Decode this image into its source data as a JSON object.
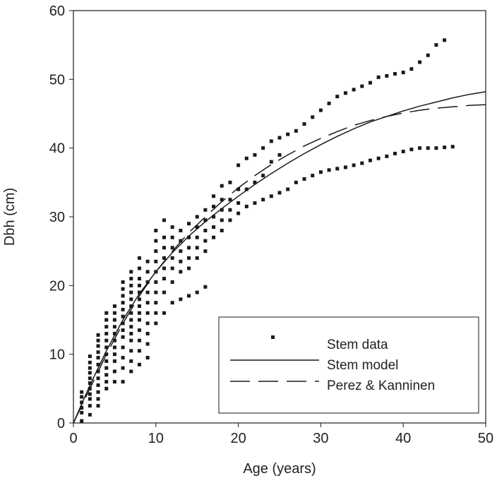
{
  "chart_data": {
    "type": "scatter",
    "xlabel": "Age (years)",
    "ylabel": "Dbh (cm)",
    "xlim": [
      0,
      50
    ],
    "ylim": [
      0,
      60
    ],
    "xticks": [
      0,
      10,
      20,
      30,
      40,
      50
    ],
    "yticks": [
      0,
      10,
      20,
      30,
      40,
      50,
      60
    ],
    "grid": false,
    "legend_position": "bottom-right",
    "series": [
      {
        "name": "Stem data",
        "kind": "points",
        "color": "#1a1a1a",
        "points": [
          [
            1,
            0.3
          ],
          [
            1,
            1.5
          ],
          [
            1,
            2.2
          ],
          [
            1,
            3.0
          ],
          [
            1,
            3.8
          ],
          [
            1,
            4.5
          ],
          [
            2,
            1.2
          ],
          [
            2,
            2.5
          ],
          [
            2,
            3.5
          ],
          [
            2,
            4.2
          ],
          [
            2,
            5.0
          ],
          [
            2,
            5.8
          ],
          [
            2,
            6.5
          ],
          [
            2,
            7.3
          ],
          [
            2,
            8.0
          ],
          [
            2,
            8.8
          ],
          [
            2,
            9.7
          ],
          [
            3,
            2.5
          ],
          [
            3,
            3.5
          ],
          [
            3,
            4.5
          ],
          [
            3,
            5.5
          ],
          [
            3,
            6.5
          ],
          [
            3,
            7.5
          ],
          [
            3,
            8.5
          ],
          [
            3,
            9.5
          ],
          [
            3,
            10.3
          ],
          [
            3,
            11.2
          ],
          [
            3,
            12.0
          ],
          [
            3,
            12.8
          ],
          [
            4,
            5.0
          ],
          [
            4,
            6.0
          ],
          [
            4,
            7.0
          ],
          [
            4,
            8.0
          ],
          [
            4,
            9.0
          ],
          [
            4,
            10.0
          ],
          [
            4,
            11.0
          ],
          [
            4,
            12.0
          ],
          [
            4,
            13.0
          ],
          [
            4,
            14.0
          ],
          [
            4,
            15.0
          ],
          [
            4,
            16.0
          ],
          [
            5,
            6.0
          ],
          [
            5,
            7.5
          ],
          [
            5,
            9.0
          ],
          [
            5,
            10.0
          ],
          [
            5,
            11.0
          ],
          [
            5,
            12.0
          ],
          [
            5,
            13.0
          ],
          [
            5,
            14.0
          ],
          [
            5,
            15.0
          ],
          [
            5,
            16.0
          ],
          [
            5,
            17.0
          ],
          [
            6,
            6.0
          ],
          [
            6,
            8.0
          ],
          [
            6,
            9.5
          ],
          [
            6,
            11.0
          ],
          [
            6,
            12.5
          ],
          [
            6,
            13.5
          ],
          [
            6,
            14.5
          ],
          [
            6,
            15.5
          ],
          [
            6,
            16.5
          ],
          [
            6,
            17.5
          ],
          [
            6,
            18.5
          ],
          [
            6,
            19.5
          ],
          [
            6,
            20.5
          ],
          [
            7,
            7.5
          ],
          [
            7,
            9.0
          ],
          [
            7,
            10.5
          ],
          [
            7,
            12.0
          ],
          [
            7,
            13.0
          ],
          [
            7,
            14.0
          ],
          [
            7,
            15.0
          ],
          [
            7,
            16.0
          ],
          [
            7,
            17.0
          ],
          [
            7,
            18.0
          ],
          [
            7,
            19.0
          ],
          [
            7,
            20.0
          ],
          [
            7,
            21.0
          ],
          [
            7,
            22.0
          ],
          [
            8,
            8.5
          ],
          [
            8,
            10.5
          ],
          [
            8,
            12.0
          ],
          [
            8,
            13.5
          ],
          [
            8,
            15.0
          ],
          [
            8,
            16.0
          ],
          [
            8,
            17.0
          ],
          [
            8,
            18.0
          ],
          [
            8,
            19.0
          ],
          [
            8,
            20.0
          ],
          [
            8,
            21.0
          ],
          [
            8,
            22.5
          ],
          [
            8,
            24.0
          ],
          [
            9,
            9.5
          ],
          [
            9,
            11.5
          ],
          [
            9,
            13.0
          ],
          [
            9,
            14.5
          ],
          [
            9,
            16.0
          ],
          [
            9,
            17.5
          ],
          [
            9,
            19.0
          ],
          [
            9,
            20.5
          ],
          [
            9,
            22.0
          ],
          [
            9,
            23.5
          ],
          [
            10,
            14.5
          ],
          [
            10,
            16.0
          ],
          [
            10,
            17.5
          ],
          [
            10,
            19.0
          ],
          [
            10,
            20.5
          ],
          [
            10,
            22.0
          ],
          [
            10,
            23.5
          ],
          [
            10,
            25.0
          ],
          [
            10,
            26.5
          ],
          [
            10,
            28.0
          ],
          [
            11,
            16.0
          ],
          [
            11,
            19.0
          ],
          [
            11,
            21.0
          ],
          [
            11,
            22.5
          ],
          [
            11,
            24.0
          ],
          [
            11,
            25.5
          ],
          [
            11,
            27.0
          ],
          [
            11,
            29.5
          ],
          [
            12,
            17.5
          ],
          [
            12,
            20.5
          ],
          [
            12,
            22.5
          ],
          [
            12,
            24.0
          ],
          [
            12,
            25.5
          ],
          [
            12,
            27.0
          ],
          [
            12,
            28.5
          ],
          [
            13,
            18.0
          ],
          [
            13,
            22.0
          ],
          [
            13,
            23.5
          ],
          [
            13,
            25.0
          ],
          [
            13,
            26.5
          ],
          [
            13,
            28.0
          ],
          [
            14,
            18.5
          ],
          [
            14,
            22.5
          ],
          [
            14,
            24.0
          ],
          [
            14,
            25.5
          ],
          [
            14,
            27.0
          ],
          [
            14,
            29.0
          ],
          [
            15,
            19.0
          ],
          [
            15,
            24.0
          ],
          [
            15,
            25.5
          ],
          [
            15,
            27.0
          ],
          [
            15,
            28.5
          ],
          [
            15,
            30.0
          ],
          [
            16,
            19.8
          ],
          [
            16,
            25.0
          ],
          [
            16,
            26.5
          ],
          [
            16,
            28.0
          ],
          [
            16,
            29.5
          ],
          [
            16,
            31.0
          ],
          [
            17,
            27.0
          ],
          [
            17,
            28.5
          ],
          [
            17,
            30.0
          ],
          [
            17,
            31.5
          ],
          [
            17,
            33.0
          ],
          [
            18,
            28.0
          ],
          [
            18,
            29.5
          ],
          [
            18,
            31.0
          ],
          [
            18,
            32.5
          ],
          [
            18,
            34.5
          ],
          [
            19,
            29.5
          ],
          [
            19,
            31.0
          ],
          [
            19,
            32.5
          ],
          [
            19,
            35.0
          ],
          [
            20,
            30.5
          ],
          [
            20,
            32.0
          ],
          [
            20,
            34.0
          ],
          [
            20,
            37.5
          ],
          [
            21,
            31.5
          ],
          [
            21,
            34.0
          ],
          [
            21,
            38.5
          ],
          [
            22,
            32.0
          ],
          [
            22,
            35.0
          ],
          [
            22,
            39.0
          ],
          [
            23,
            32.5
          ],
          [
            23,
            36.0
          ],
          [
            23,
            40.0
          ],
          [
            24,
            33.0
          ],
          [
            24,
            38.0
          ],
          [
            24,
            41.0
          ],
          [
            25,
            33.5
          ],
          [
            25,
            39.0
          ],
          [
            25,
            41.5
          ],
          [
            26,
            34.0
          ],
          [
            26,
            42.0
          ],
          [
            27,
            35.0
          ],
          [
            27,
            42.5
          ],
          [
            28,
            35.5
          ],
          [
            28,
            43.5
          ],
          [
            29,
            36.0
          ],
          [
            29,
            44.5
          ],
          [
            30,
            36.5
          ],
          [
            30,
            45.5
          ],
          [
            31,
            36.8
          ],
          [
            31,
            46.5
          ],
          [
            32,
            37.0
          ],
          [
            32,
            47.5
          ],
          [
            33,
            37.2
          ],
          [
            33,
            48.0
          ],
          [
            34,
            37.5
          ],
          [
            34,
            48.5
          ],
          [
            35,
            37.8
          ],
          [
            35,
            49.0
          ],
          [
            36,
            38.2
          ],
          [
            36,
            49.5
          ],
          [
            37,
            38.5
          ],
          [
            37,
            50.3
          ],
          [
            38,
            38.8
          ],
          [
            38,
            50.5
          ],
          [
            39,
            39.2
          ],
          [
            39,
            50.8
          ],
          [
            40,
            39.5
          ],
          [
            40,
            51.0
          ],
          [
            41,
            39.8
          ],
          [
            41,
            51.5
          ],
          [
            42,
            40.0
          ],
          [
            42,
            52.5
          ],
          [
            43,
            40.0
          ],
          [
            43,
            53.5
          ],
          [
            44,
            40.0
          ],
          [
            44,
            55.0
          ],
          [
            45,
            40.1
          ],
          [
            45,
            55.7
          ],
          [
            46,
            40.2
          ]
        ]
      },
      {
        "name": "Stem model",
        "kind": "solid-line",
        "color": "#1a1a1a",
        "x": [
          0,
          2,
          4,
          6,
          8,
          10,
          12,
          14,
          16,
          18,
          20,
          22,
          24,
          26,
          28,
          30,
          32,
          34,
          36,
          38,
          40,
          42,
          44,
          46,
          48,
          50
        ],
        "y": [
          0,
          5.5,
          10.5,
          15.0,
          18.8,
          22.0,
          24.8,
          27.2,
          29.3,
          31.2,
          33.0,
          34.7,
          36.3,
          37.8,
          39.2,
          40.5,
          41.7,
          42.8,
          43.8,
          44.6,
          45.4,
          46.1,
          46.7,
          47.3,
          47.8,
          48.2
        ]
      },
      {
        "name": "Perez & Kanninen",
        "kind": "dashed-line",
        "color": "#1a1a1a",
        "x": [
          0,
          2,
          4,
          6,
          8,
          10,
          12,
          14,
          16,
          18,
          20,
          22,
          24,
          26,
          28,
          30,
          32,
          34,
          36,
          38,
          40,
          42,
          44,
          46,
          48,
          50
        ],
        "y": [
          0,
          5.0,
          10.0,
          14.5,
          18.5,
          22.0,
          25.0,
          27.7,
          30.0,
          32.2,
          34.2,
          36.0,
          37.6,
          39.0,
          40.3,
          41.4,
          42.4,
          43.3,
          44.0,
          44.6,
          45.1,
          45.5,
          45.8,
          46.0,
          46.2,
          46.3
        ]
      }
    ]
  }
}
